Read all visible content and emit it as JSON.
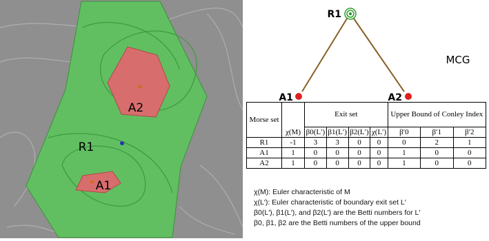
{
  "image": {
    "labels": [
      "A2",
      "R1",
      "A1"
    ]
  },
  "graph": {
    "nodes": [
      "R1",
      "A1",
      "A2"
    ],
    "label": "MCG"
  },
  "table": {
    "header": [
      "Morse set",
      "χ(M)",
      "Exit set",
      "Upper Bound of Conley Index"
    ],
    "subheader": [
      "β0(L′)",
      "β1(L′)",
      "β2(L′)",
      "χ(L′)",
      "β′0",
      "β′1",
      "β′2"
    ],
    "rows": [
      [
        "R1",
        -1,
        3,
        3,
        0,
        0,
        0,
        2,
        1
      ],
      [
        "A1",
        1,
        0,
        0,
        0,
        0,
        1,
        0,
        0
      ],
      [
        "A2",
        1,
        0,
        0,
        0,
        0,
        1,
        0,
        0
      ]
    ]
  },
  "notes": [
    "χ(M): Euler characteristic of M",
    "χ(L′): Euler characteristic of boundary exit set L′",
    "β0(L′), β1(L′), and β2(L′) are the Betti numbers for L′",
    "β0, β1, β2 are the Betti numbers of the upper bound"
  ]
}
